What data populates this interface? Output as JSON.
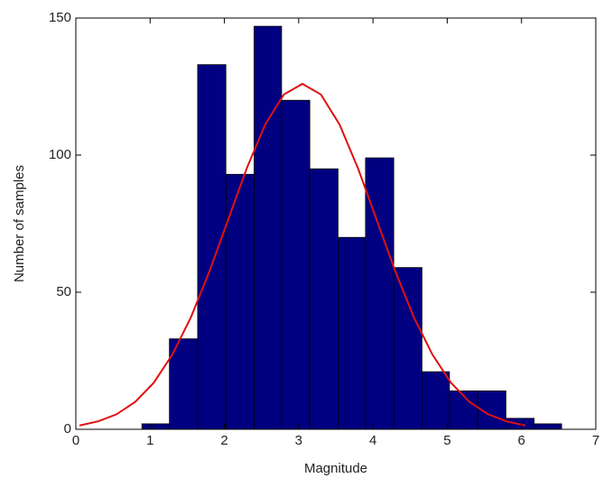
{
  "chart_data": {
    "type": "histogram",
    "xlabel": "Magnitude",
    "ylabel": "Number of samples",
    "bins": [
      0.13,
      0.51,
      0.89,
      1.26,
      1.64,
      2.02,
      2.4,
      2.77,
      3.15,
      3.53,
      3.9,
      4.28,
      4.66,
      5.03,
      5.41,
      5.79,
      6.17,
      6.54,
      6.92
    ],
    "values": [
      0,
      0,
      2,
      33,
      133,
      93,
      147,
      120,
      95,
      70,
      99,
      59,
      21,
      14,
      14,
      4,
      2,
      0
    ],
    "color": "#000080",
    "curve": {
      "color": "#e01010",
      "x": [
        0.05,
        0.3,
        0.55,
        0.8,
        1.05,
        1.3,
        1.55,
        1.8,
        2.05,
        2.3,
        2.55,
        2.8,
        3.05,
        3.3,
        3.55,
        3.8,
        4.05,
        4.3,
        4.55,
        4.8,
        5.05,
        5.3,
        5.55,
        5.8,
        6.05
      ],
      "values": [
        1.4,
        2.9,
        5.5,
        10.0,
        17.0,
        27.3,
        40.9,
        57.7,
        76.4,
        95.1,
        111.2,
        122.1,
        126,
        122.1,
        111.2,
        95.1,
        76.4,
        57.7,
        40.9,
        27.3,
        17.0,
        10.0,
        5.5,
        2.9,
        1.4
      ]
    },
    "xlim": [
      0,
      7
    ],
    "ylim": [
      0,
      150
    ],
    "xticks": [
      0,
      1,
      2,
      3,
      4,
      5,
      6,
      7
    ],
    "yticks": [
      0,
      50,
      100,
      150
    ]
  }
}
